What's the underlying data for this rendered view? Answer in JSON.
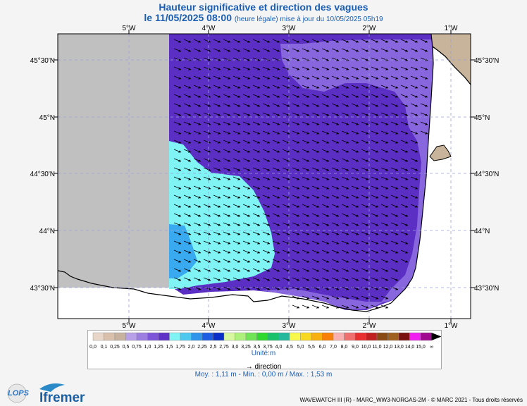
{
  "title": "Hauteur significative et direction des vagues",
  "subtitle_date": "le 11/05/2025 08:00",
  "subtitle_note": "(heure légale) mise à jour du 10/05/2025 05h19",
  "lon_labels": [
    "5°W",
    "4°W",
    "3°W",
    "2°W",
    "1°W"
  ],
  "lat_labels": [
    "45°30'N",
    "45°N",
    "44°30'N",
    "44°N",
    "43°30'N"
  ],
  "legend": {
    "values": [
      "0,0",
      "0,1",
      "0,25",
      "0,5",
      "0,75",
      "1,0",
      "1,25",
      "1,5",
      "1,75",
      "2,0",
      "2,25",
      "2,5",
      "2,75",
      "3,0",
      "3,25",
      "3,5",
      "3,75",
      "4,0",
      "4,5",
      "5,0",
      "5,5",
      "6,0",
      "7,0",
      "8,0",
      "9,0",
      "10,0",
      "11,0",
      "12,0",
      "13,0",
      "14,0",
      "15,0",
      "∞"
    ],
    "colors": [
      "#e8d7c8",
      "#d8c0ac",
      "#c7b2a0",
      "#b7a0e8",
      "#9b7ee0",
      "#7d55d8",
      "#5e33c6",
      "#80f4f4",
      "#4fc8f0",
      "#2f95ea",
      "#1e5ee0",
      "#0a2ec8",
      "#d8f8a0",
      "#aef07c",
      "#6ee456",
      "#2ed82e",
      "#19c26a",
      "#24b89c",
      "#f8f84c",
      "#f8d820",
      "#f8b010",
      "#f88008",
      "#f8b0b0",
      "#f07070",
      "#e83030",
      "#c02020",
      "#8a4a14",
      "#a06020",
      "#7a1010",
      "#f020f0",
      "#a00890"
    ],
    "unit": "Unité:m"
  },
  "direction_label": "direction",
  "stats": "Moy. : 1,11 m   -   Min. : 0,00 m / Max. : 1,53 m",
  "footer": "WAVEWATCH III (R) - MARC_WW3-NORGAS-2M - © MARC 2021 - Tous droits réservés",
  "logos": {
    "lops": "LOPS",
    "ifremer": "Ifremer"
  },
  "colors": {
    "sea_dark": "#5c2fc4",
    "sea_light": "#8866dd",
    "sea_cyan": "#80f4f4",
    "sea_blue": "#3aaaf0",
    "land": "#c8b49a",
    "nodata": "#c0c0c0"
  }
}
